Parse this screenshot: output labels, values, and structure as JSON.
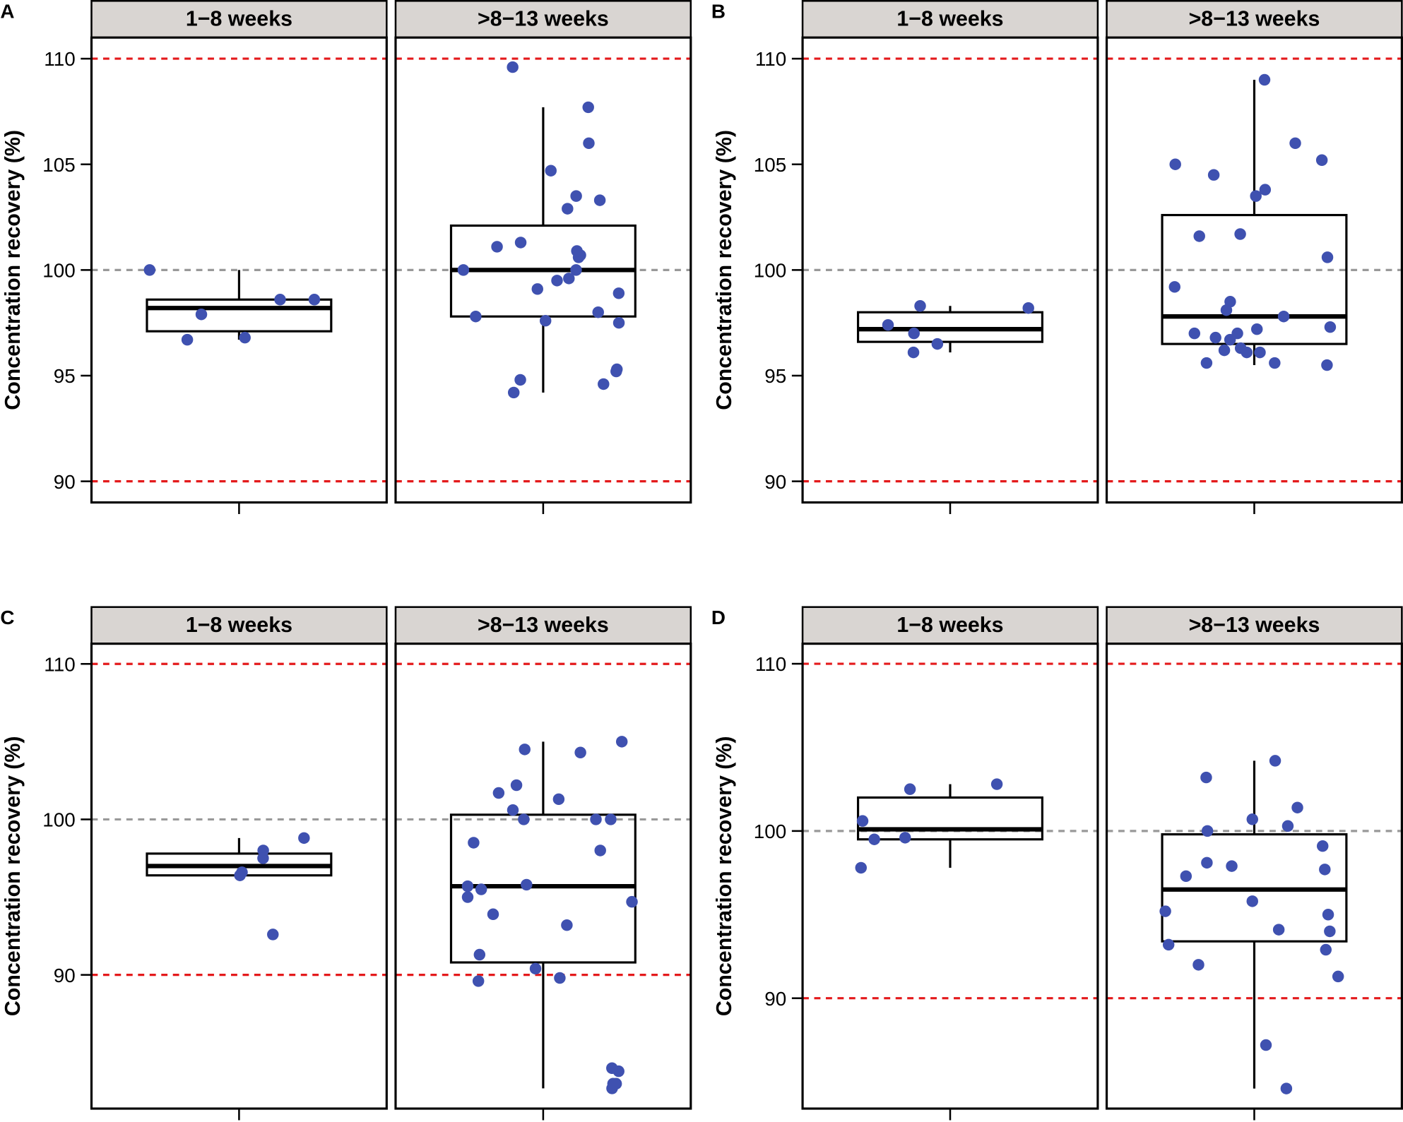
{
  "chart_data": [
    {
      "type": "box",
      "panel": "A",
      "ylabel": "Concentration recovery (%)",
      "ylim": [
        89,
        111
      ],
      "yticks": [
        90,
        95,
        100,
        105,
        110
      ],
      "reference_lines": [
        {
          "y": 110,
          "color": "#e41a1c",
          "style": "dashed"
        },
        {
          "y": 100,
          "color": "#999999",
          "style": "dashed"
        },
        {
          "y": 90,
          "color": "#e41a1c",
          "style": "dashed"
        }
      ],
      "facets": [
        {
          "label": "1−8 weeks",
          "box": {
            "lower_whisker": 96.7,
            "q1": 97.1,
            "median": 98.2,
            "q3": 98.6,
            "upper_whisker": 100.0
          },
          "points": [
            100.0,
            98.6,
            97.9,
            96.7,
            98.6,
            96.8
          ]
        },
        {
          "label": ">8−13 weeks",
          "box": {
            "lower_whisker": 94.2,
            "q1": 97.8,
            "median": 100.0,
            "q3": 102.1,
            "upper_whisker": 107.7
          },
          "points": [
            109.6,
            107.7,
            106.0,
            104.7,
            103.5,
            102.9,
            103.3,
            101.1,
            101.3,
            100.7,
            100.6,
            100.0,
            100.0,
            99.1,
            98.9,
            98.0,
            97.8,
            97.6,
            97.5,
            100.9,
            99.6,
            99.5,
            95.3,
            95.2,
            94.8,
            94.2,
            94.6
          ]
        }
      ]
    },
    {
      "type": "box",
      "panel": "B",
      "ylabel": "Concentration recovery (%)",
      "ylim": [
        89,
        111
      ],
      "yticks": [
        90,
        95,
        100,
        105,
        110
      ],
      "reference_lines": [
        {
          "y": 110,
          "color": "#e41a1c",
          "style": "dashed"
        },
        {
          "y": 100,
          "color": "#999999",
          "style": "dashed"
        },
        {
          "y": 90,
          "color": "#e41a1c",
          "style": "dashed"
        }
      ],
      "facets": [
        {
          "label": "1−8 weeks",
          "box": {
            "lower_whisker": 96.1,
            "q1": 96.6,
            "median": 97.2,
            "q3": 98.0,
            "upper_whisker": 98.3
          },
          "points": [
            98.3,
            97.4,
            97.0,
            96.5,
            96.1,
            98.2
          ]
        },
        {
          "label": ">8−13 weeks",
          "box": {
            "lower_whisker": 95.5,
            "q1": 96.5,
            "median": 97.8,
            "q3": 102.6,
            "upper_whisker": 109.0
          },
          "points": [
            109.0,
            106.0,
            105.2,
            105.0,
            104.5,
            103.8,
            103.5,
            101.7,
            101.6,
            100.6,
            99.2,
            98.5,
            98.1,
            97.8,
            97.3,
            97.2,
            97.0,
            97.0,
            96.8,
            96.7,
            96.3,
            96.2,
            96.1,
            95.6,
            95.6,
            95.5,
            96.1
          ]
        }
      ]
    },
    {
      "type": "box",
      "panel": "C",
      "ylabel": "Concentration recovery (%)",
      "ylim": [
        81.4,
        111.3
      ],
      "yticks": [
        90,
        100,
        110
      ],
      "reference_lines": [
        {
          "y": 110,
          "color": "#e41a1c",
          "style": "dashed"
        },
        {
          "y": 100,
          "color": "#999999",
          "style": "dashed"
        },
        {
          "y": 90,
          "color": "#e41a1c",
          "style": "dashed"
        }
      ],
      "facets": [
        {
          "label": "1−8 weeks",
          "box": {
            "lower_whisker": 96.4,
            "q1": 96.4,
            "median": 97.0,
            "q3": 97.8,
            "upper_whisker": 98.8
          },
          "points": [
            98.8,
            98.0,
            97.5,
            96.6,
            96.4,
            92.6
          ]
        },
        {
          "label": ">8−13 weeks",
          "box": {
            "lower_whisker": 82.7,
            "q1": 90.8,
            "median": 95.7,
            "q3": 100.3,
            "upper_whisker": 105.0
          },
          "points": [
            105.0,
            104.5,
            104.3,
            101.7,
            101.3,
            102.2,
            100.6,
            100.0,
            100.0,
            100.0,
            98.5,
            98.0,
            95.7,
            95.8,
            95.5,
            95.0,
            94.7,
            93.9,
            93.2,
            91.3,
            90.4,
            89.8,
            89.6,
            83.8,
            84.0,
            83.0,
            82.7,
            83.0
          ]
        }
      ]
    },
    {
      "type": "box",
      "panel": "D",
      "ylabel": "Concentration recovery (%)",
      "ylim": [
        83.4,
        111.2
      ],
      "yticks": [
        90,
        100,
        110
      ],
      "reference_lines": [
        {
          "y": 110,
          "color": "#e41a1c",
          "style": "dashed"
        },
        {
          "y": 100,
          "color": "#999999",
          "style": "dashed"
        },
        {
          "y": 90,
          "color": "#e41a1c",
          "style": "dashed"
        }
      ],
      "facets": [
        {
          "label": "1−8 weeks",
          "box": {
            "lower_whisker": 97.8,
            "q1": 99.5,
            "median": 100.1,
            "q3": 102.0,
            "upper_whisker": 102.8
          },
          "points": [
            102.8,
            102.5,
            100.6,
            99.6,
            99.5,
            97.8
          ]
        },
        {
          "label": ">8−13 weeks",
          "box": {
            "lower_whisker": 84.6,
            "q1": 93.4,
            "median": 96.5,
            "q3": 99.8,
            "upper_whisker": 104.2
          },
          "points": [
            104.2,
            103.2,
            101.4,
            100.7,
            100.3,
            100.0,
            99.1,
            98.1,
            97.9,
            97.7,
            97.3,
            95.8,
            95.2,
            95.0,
            94.1,
            94.0,
            93.2,
            92.9,
            92.0,
            91.3,
            87.2,
            84.6
          ]
        }
      ]
    }
  ],
  "colors": {
    "point": "#3f51b0",
    "strip_bg": "#d9d5d2",
    "ref_red": "#e41a1c",
    "ref_grey": "#999999"
  }
}
